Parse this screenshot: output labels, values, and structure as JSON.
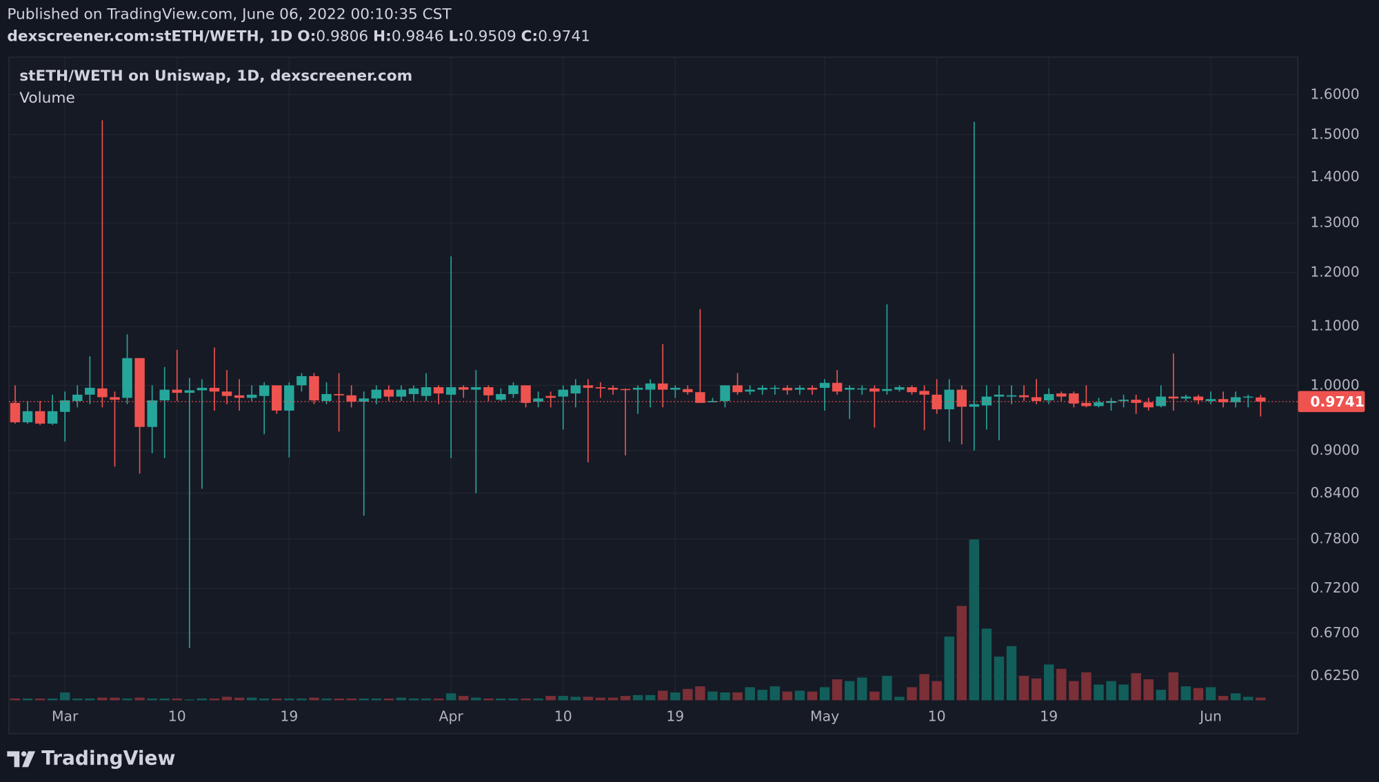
{
  "publish_note": "Published on TradingView.com, June 06, 2022 00:10:35 CST",
  "brand": "TradingView",
  "chart_data": {
    "type": "candlestick",
    "symbol": "dexscreener.com:stETH/WETH, 1D",
    "ohlc_labels": [
      "O:",
      "H:",
      "L:",
      "C:"
    ],
    "title": "stETH/WETH on Uniswap, 1D, dexscreener.com",
    "volume_label": "Volume",
    "up_color": "#26a69a",
    "down_color": "#ef5350",
    "volume_up_color": "#115e5a",
    "volume_down_color": "#7b2f36",
    "log_scale": true,
    "grid": true,
    "x": [
      "2022-02-25",
      "2022-02-26",
      "2022-02-27",
      "2022-02-28",
      "2022-03-01",
      "2022-03-02",
      "2022-03-03",
      "2022-03-04",
      "2022-03-05",
      "2022-03-06",
      "2022-03-07",
      "2022-03-08",
      "2022-03-09",
      "2022-03-10",
      "2022-03-11",
      "2022-03-12",
      "2022-03-13",
      "2022-03-14",
      "2022-03-15",
      "2022-03-16",
      "2022-03-17",
      "2022-03-18",
      "2022-03-19",
      "2022-03-20",
      "2022-03-21",
      "2022-03-22",
      "2022-03-23",
      "2022-03-24",
      "2022-03-25",
      "2022-03-26",
      "2022-03-27",
      "2022-03-28",
      "2022-03-29",
      "2022-03-30",
      "2022-03-31",
      "2022-04-01",
      "2022-04-02",
      "2022-04-03",
      "2022-04-04",
      "2022-04-05",
      "2022-04-06",
      "2022-04-07",
      "2022-04-08",
      "2022-04-09",
      "2022-04-10",
      "2022-04-11",
      "2022-04-12",
      "2022-04-13",
      "2022-04-14",
      "2022-04-15",
      "2022-04-16",
      "2022-04-17",
      "2022-04-18",
      "2022-04-19",
      "2022-04-20",
      "2022-04-21",
      "2022-04-22",
      "2022-04-23",
      "2022-04-24",
      "2022-04-25",
      "2022-04-26",
      "2022-04-27",
      "2022-04-28",
      "2022-04-29",
      "2022-04-30",
      "2022-05-01",
      "2022-05-02",
      "2022-05-03",
      "2022-05-04",
      "2022-05-05",
      "2022-05-06",
      "2022-05-07",
      "2022-05-08",
      "2022-05-09",
      "2022-05-10",
      "2022-05-11",
      "2022-05-12",
      "2022-05-13",
      "2022-05-14",
      "2022-05-15",
      "2022-05-16",
      "2022-05-17",
      "2022-05-18",
      "2022-05-19",
      "2022-05-20",
      "2022-05-21",
      "2022-05-22",
      "2022-05-23",
      "2022-05-24",
      "2022-05-25",
      "2022-05-26",
      "2022-05-27",
      "2022-05-28",
      "2022-05-29",
      "2022-05-30",
      "2022-05-31",
      "2022-06-01",
      "2022-06-02",
      "2022-06-03",
      "2022-06-04",
      "2022-06-05"
    ],
    "open": [
      0.972,
      0.942,
      0.959,
      0.94,
      0.958,
      0.975,
      0.985,
      0.995,
      0.981,
      0.98,
      1.045,
      0.935,
      0.976,
      0.993,
      0.988,
      0.992,
      0.996,
      0.99,
      0.984,
      0.98,
      0.983,
      1.0,
      0.96,
      1.0,
      1.015,
      0.975,
      0.986,
      0.984,
      0.974,
      0.979,
      0.993,
      0.982,
      0.986,
      0.983,
      0.997,
      0.985,
      0.997,
      0.993,
      0.997,
      0.977,
      0.986,
      1.0,
      0.974,
      0.983,
      0.982,
      0.987,
      1.0,
      0.997,
      0.996,
      0.994,
      0.993,
      0.993,
      1.003,
      0.993,
      0.994,
      0.989,
      0.973,
      0.975,
      1.0,
      0.99,
      0.993,
      0.995,
      0.996,
      0.993,
      0.996,
      0.996,
      1.004,
      0.993,
      0.994,
      0.995,
      0.991,
      0.993,
      0.997,
      0.991,
      0.985,
      0.962,
      0.993,
      0.966,
      0.968,
      0.982,
      0.982,
      0.984,
      0.981,
      0.976,
      0.987,
      0.987,
      0.972,
      0.967,
      0.972,
      0.975,
      0.977,
      0.973,
      0.967,
      0.982,
      0.979,
      0.982,
      0.975,
      0.978,
      0.973,
      0.981,
      0.9806
    ],
    "high": [
      1.0,
      0.975,
      0.975,
      0.985,
      0.99,
      1.0,
      1.048,
      1.535,
      0.99,
      1.086,
      1.045,
      1.0,
      1.03,
      1.059,
      1.012,
      1.01,
      1.063,
      1.025,
      1.01,
      1.0,
      1.005,
      1.0,
      1.005,
      1.02,
      1.02,
      1.005,
      1.02,
      1.0,
      0.99,
      1.0,
      1.0,
      1.0,
      1.0,
      1.02,
      1.0,
      1.232,
      1.0,
      1.025,
      1.0,
      0.995,
      1.005,
      1.0,
      0.99,
      0.99,
      1.0,
      1.01,
      1.01,
      1.005,
      1.0,
      0.995,
      1.0,
      1.01,
      1.069,
      1.0,
      1.0,
      1.131,
      0.98,
      1.0,
      1.02,
      1.0,
      1.0,
      1.0,
      1.0,
      1.0,
      1.0,
      1.01,
      1.025,
      1.0,
      1.0,
      1.0,
      1.14,
      1.0,
      1.0,
      1.0,
      1.01,
      1.01,
      1.0,
      1.531,
      1.0,
      1.0,
      1.0,
      1.0,
      1.01,
      0.995,
      0.99,
      0.99,
      1.0,
      0.98,
      0.98,
      0.985,
      0.985,
      0.98,
      1.0,
      1.053,
      0.985,
      0.985,
      0.99,
      0.99,
      0.99,
      0.985,
      0.9846
    ],
    "low": [
      0.94,
      0.94,
      0.938,
      0.938,
      0.913,
      0.965,
      0.97,
      0.965,
      0.877,
      0.97,
      0.867,
      0.896,
      0.889,
      0.975,
      0.654,
      0.846,
      0.96,
      0.97,
      0.96,
      0.975,
      0.924,
      0.955,
      0.89,
      0.99,
      0.97,
      0.97,
      0.928,
      0.965,
      0.81,
      0.97,
      0.975,
      0.975,
      0.975,
      0.975,
      0.97,
      0.889,
      0.98,
      0.84,
      0.975,
      0.975,
      0.98,
      0.965,
      0.965,
      0.965,
      0.931,
      0.965,
      0.883,
      0.98,
      0.985,
      0.893,
      0.955,
      0.965,
      0.965,
      0.98,
      0.985,
      0.972,
      0.973,
      0.965,
      0.985,
      0.985,
      0.985,
      0.985,
      0.985,
      0.985,
      0.985,
      0.96,
      0.985,
      0.947,
      0.985,
      0.934,
      0.985,
      0.99,
      0.985,
      0.93,
      0.955,
      0.913,
      0.909,
      0.9,
      0.931,
      0.915,
      0.97,
      0.975,
      0.97,
      0.97,
      0.975,
      0.965,
      0.965,
      0.965,
      0.96,
      0.965,
      0.955,
      0.96,
      0.965,
      0.96,
      0.975,
      0.97,
      0.97,
      0.965,
      0.965,
      0.965,
      0.9509
    ],
    "close": [
      0.942,
      0.959,
      0.94,
      0.959,
      0.976,
      0.985,
      0.996,
      0.981,
      0.977,
      1.045,
      0.935,
      0.976,
      0.993,
      0.988,
      0.992,
      0.996,
      0.99,
      0.983,
      0.98,
      0.985,
      1.0,
      0.96,
      1.0,
      1.015,
      0.976,
      0.986,
      0.984,
      0.974,
      0.979,
      0.993,
      0.982,
      0.993,
      0.995,
      0.997,
      0.987,
      0.997,
      0.993,
      0.997,
      0.984,
      0.986,
      1.0,
      0.972,
      0.979,
      0.98,
      0.993,
      1.0,
      0.996,
      0.995,
      0.993,
      0.993,
      0.996,
      1.003,
      0.993,
      0.996,
      0.989,
      0.972,
      0.975,
      1.0,
      0.989,
      0.993,
      0.996,
      0.996,
      0.992,
      0.996,
      0.993,
      1.004,
      0.99,
      0.996,
      0.995,
      0.99,
      0.994,
      0.997,
      0.989,
      0.985,
      0.962,
      0.993,
      0.966,
      0.97,
      0.982,
      0.985,
      0.984,
      0.981,
      0.975,
      0.986,
      0.982,
      0.971,
      0.967,
      0.973,
      0.975,
      0.977,
      0.972,
      0.965,
      0.982,
      0.979,
      0.982,
      0.976,
      0.978,
      0.973,
      0.981,
      0.982,
      0.9741
    ],
    "volume": [
      2,
      2,
      2,
      2,
      9,
      2,
      2,
      3,
      3,
      2,
      3,
      2,
      2,
      2,
      1,
      2,
      2,
      4,
      3,
      3,
      2,
      2,
      2,
      2,
      3,
      2,
      2,
      2,
      2,
      2,
      2,
      3,
      2,
      2,
      2,
      8,
      5,
      3,
      2,
      2,
      2,
      2,
      2,
      5,
      5,
      4,
      4,
      3,
      3,
      5,
      6,
      6,
      11,
      9,
      13,
      16,
      10,
      9,
      9,
      15,
      12,
      16,
      10,
      11,
      10,
      15,
      24,
      22,
      26,
      10,
      28,
      4,
      15,
      30,
      22,
      73,
      108,
      184,
      82,
      50,
      62,
      28,
      25,
      41,
      36,
      22,
      32,
      18,
      22,
      18,
      31,
      24,
      12,
      32,
      16,
      14,
      15,
      5,
      8,
      4,
      3
    ],
    "xlim": [
      "2022-02-24T12:00Z",
      "2022-06-08T00:00Z"
    ],
    "xticks": [
      {
        "value": "2022-03-01",
        "label": "Mar"
      },
      {
        "value": "2022-03-10",
        "label": "10"
      },
      {
        "value": "2022-03-19",
        "label": "19"
      },
      {
        "value": "2022-04-01",
        "label": "Apr"
      },
      {
        "value": "2022-04-10",
        "label": "10"
      },
      {
        "value": "2022-04-19",
        "label": "19"
      },
      {
        "value": "2022-05-01",
        "label": "May"
      },
      {
        "value": "2022-05-10",
        "label": "10"
      },
      {
        "value": "2022-05-19",
        "label": "19"
      },
      {
        "value": "2022-06-01",
        "label": "Jun"
      }
    ],
    "ylim": [
      0.601,
      1.7
    ],
    "yticks": [
      {
        "value": 0.625,
        "label": "0.6250"
      },
      {
        "value": 0.67,
        "label": "0.6700"
      },
      {
        "value": 0.72,
        "label": "0.7200"
      },
      {
        "value": 0.78,
        "label": "0.7800"
      },
      {
        "value": 0.84,
        "label": "0.8400"
      },
      {
        "value": 0.9,
        "label": "0.9000"
      },
      {
        "value": 1.0,
        "label": "1.0000"
      },
      {
        "value": 1.1,
        "label": "1.1000"
      },
      {
        "value": 1.2,
        "label": "1.2000"
      },
      {
        "value": 1.3,
        "label": "1.3000"
      },
      {
        "value": 1.4,
        "label": "1.4000"
      },
      {
        "value": 1.5,
        "label": "1.5000"
      },
      {
        "value": 1.6,
        "label": "1.6000"
      }
    ]
  }
}
